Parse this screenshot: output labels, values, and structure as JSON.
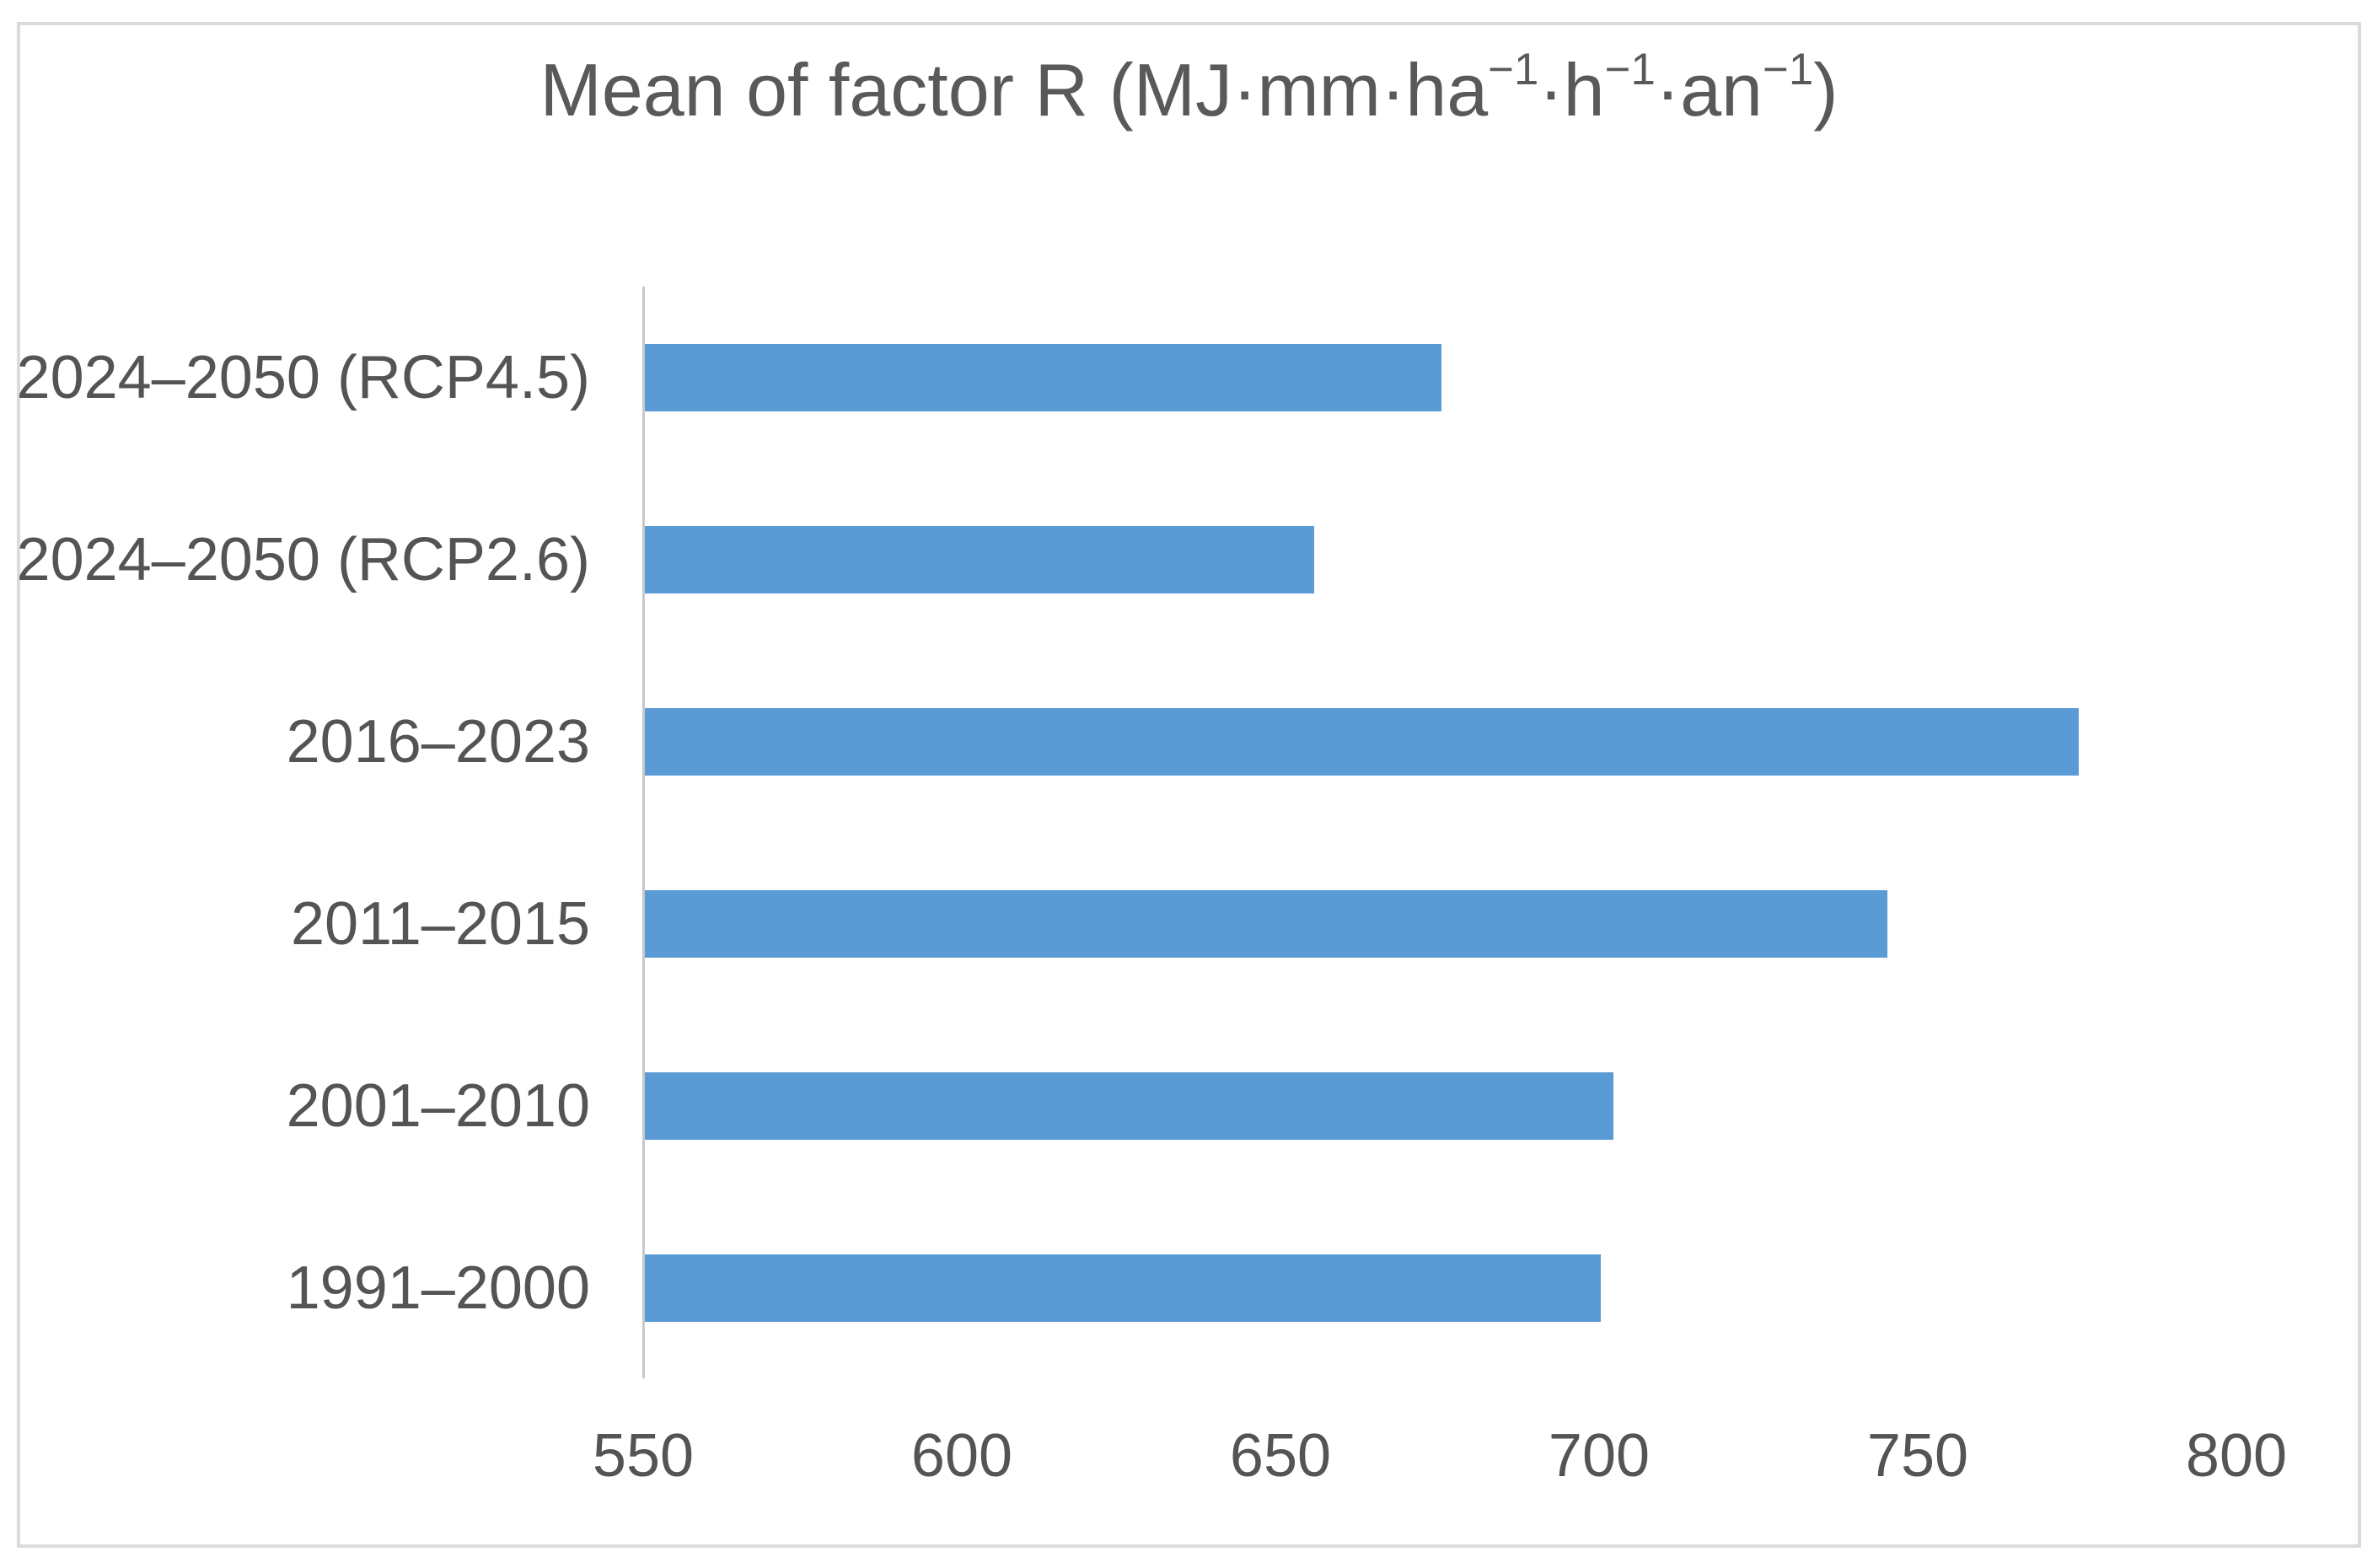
{
  "window": {
    "background_color": "#ffffff",
    "border_color": "#dbdbdb"
  },
  "chart_data": {
    "type": "bar",
    "orientation": "horizontal",
    "title": "Mean of factor R (MJ·mm·ha⁻¹·h⁻¹·an⁻¹)",
    "title_segments": [
      {
        "text": "Mean of factor R (MJ·mm·ha",
        "sup": false
      },
      {
        "text": "−1",
        "sup": true
      },
      {
        "text": "·h",
        "sup": false
      },
      {
        "text": "−1",
        "sup": true
      },
      {
        "text": "·an",
        "sup": false
      },
      {
        "text": "−1",
        "sup": true
      },
      {
        "text": ")",
        "sup": false
      }
    ],
    "categories": [
      "2024–2050 (RCP4.5)",
      "2024–2050 (RCP2.6)",
      "2016–2023",
      "2011–2015",
      "2001–2010",
      "1991–2000"
    ],
    "values": [
      675,
      655,
      775,
      745,
      702,
      700
    ],
    "categories_order_note": "top to bottom",
    "xlabel": "",
    "ylabel": "",
    "xlim": [
      550,
      800
    ],
    "xticks": [
      550,
      600,
      650,
      700,
      750,
      800
    ],
    "grid": false,
    "legend": false,
    "bar_color": "#5B9BD5",
    "axis_line_color": "#c9c9c9",
    "text_color": "#595959"
  }
}
